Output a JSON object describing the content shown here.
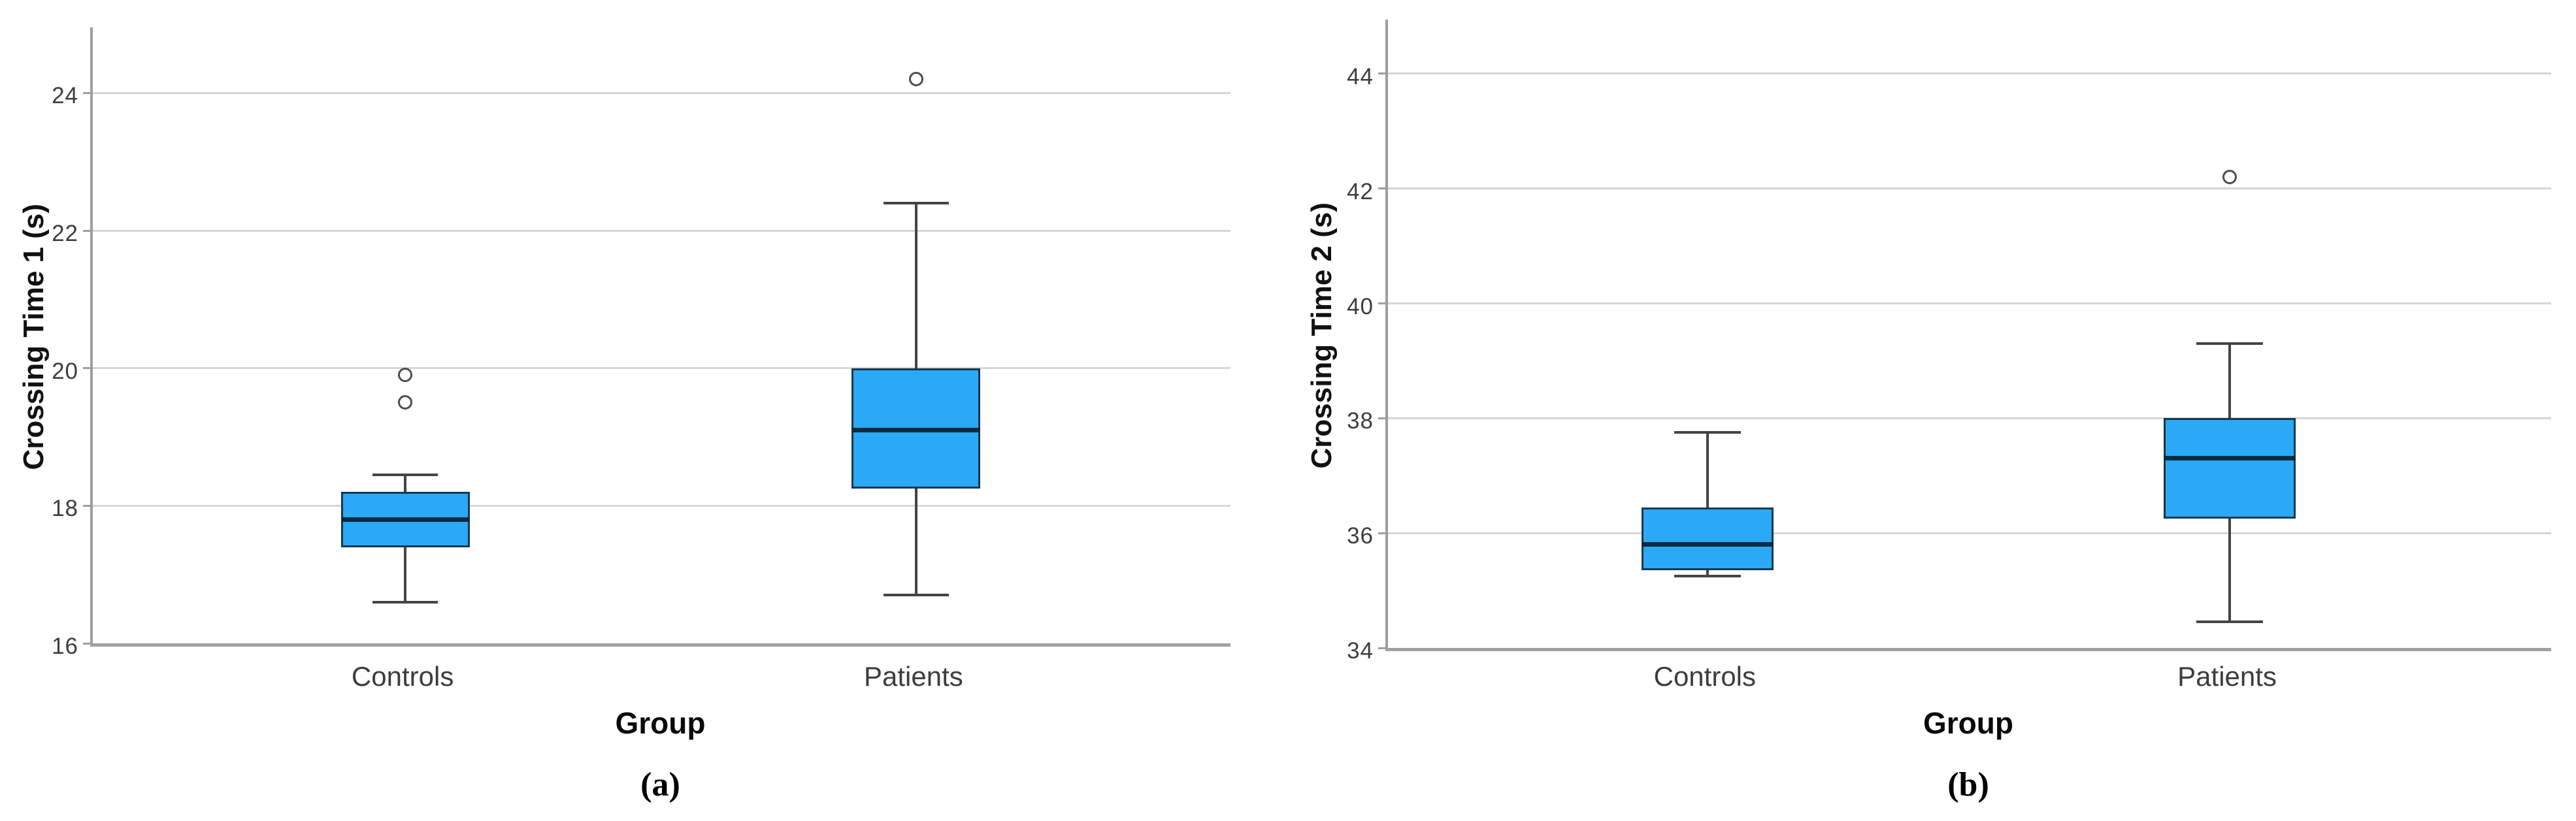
{
  "figure": {
    "panels": [
      {
        "caption": "(a)"
      },
      {
        "caption": "(b)"
      }
    ]
  },
  "style": {
    "box_fill": "#2BA9F7",
    "box_border": "#14384F",
    "median_color": "#0D2B3F",
    "whisker_color": "#444444",
    "outlier_stroke": "#4D4D4D",
    "gridline_color": "#D6D6D6",
    "axis_color": "#9E9E9E",
    "tick_text_color": "#3D3D3D"
  },
  "chart_data": [
    {
      "type": "boxplot",
      "title": "",
      "xlabel": "Group",
      "ylabel": "Crossing Time 1 (s)",
      "categories": [
        "Controls",
        "Patients"
      ],
      "ylim": [
        16,
        25
      ],
      "yticks": [
        16,
        18,
        20,
        22,
        24
      ],
      "grid": true,
      "legend_position": "none",
      "caption": "(a)",
      "series": [
        {
          "category": "Controls",
          "whisker_low": 16.6,
          "q1": 17.4,
          "median": 17.8,
          "q3": 18.2,
          "whisker_high": 18.45,
          "outliers": [
            19.5,
            19.9
          ]
        },
        {
          "category": "Patients",
          "whisker_low": 16.7,
          "q1": 18.25,
          "median": 19.1,
          "q3": 20.0,
          "whisker_high": 22.4,
          "outliers": [
            24.2
          ]
        }
      ]
    },
    {
      "type": "boxplot",
      "title": "",
      "xlabel": "Group",
      "ylabel": "Crossing Time 2 (s)",
      "categories": [
        "Controls",
        "Patients"
      ],
      "ylim": [
        34,
        45
      ],
      "yticks": [
        34,
        36,
        38,
        40,
        42,
        44
      ],
      "grid": true,
      "legend_position": "none",
      "caption": "(b)",
      "series": [
        {
          "category": "Controls",
          "whisker_low": 35.25,
          "q1": 35.35,
          "median": 35.8,
          "q3": 36.45,
          "whisker_high": 37.75,
          "outliers": []
        },
        {
          "category": "Patients",
          "whisker_low": 34.45,
          "q1": 36.25,
          "median": 37.3,
          "q3": 38.0,
          "whisker_high": 39.3,
          "outliers": [
            42.2
          ]
        }
      ]
    }
  ]
}
